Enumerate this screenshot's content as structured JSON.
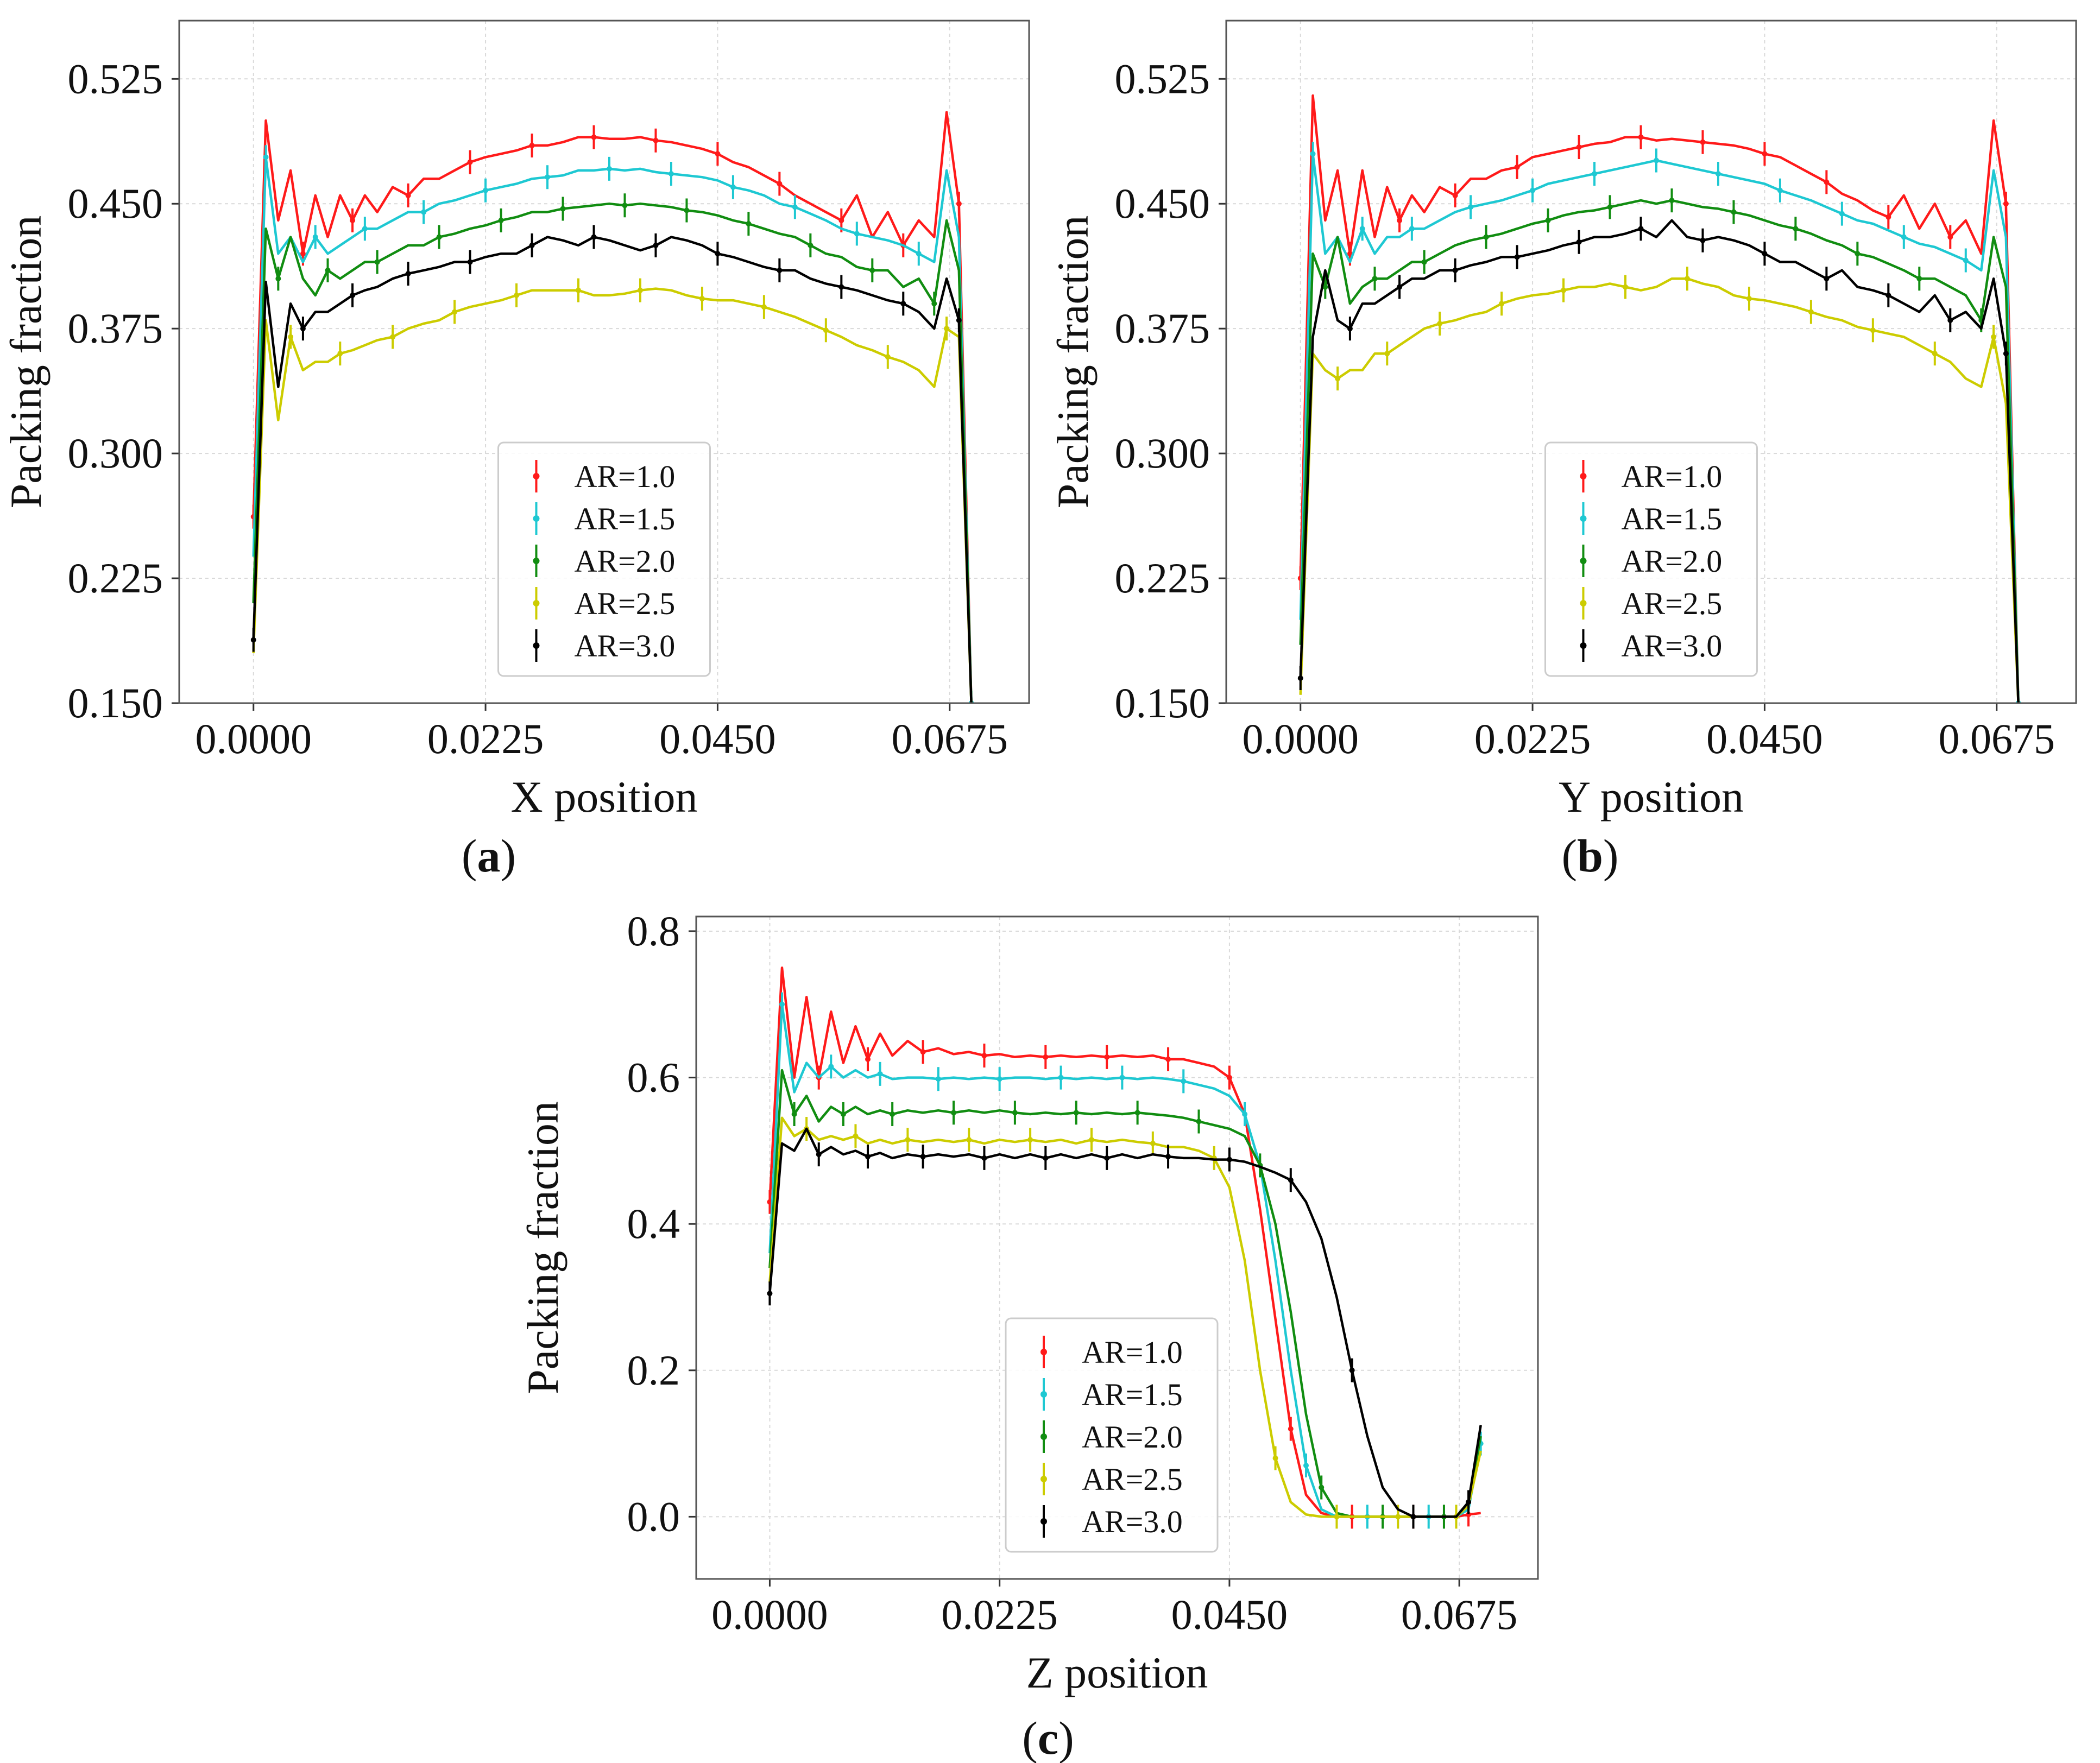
{
  "figure": {
    "legend_title": "",
    "panels": [
      "a",
      "b",
      "c"
    ]
  },
  "colors": {
    "AR=1.0": "#ff1a1a",
    "AR=1.5": "#1ec8d2",
    "AR=2.0": "#118d11",
    "AR=2.5": "#cccc00",
    "AR=3.0": "#000000",
    "grid": "#d9d9d9",
    "axes": "#555555"
  },
  "chart_data": [
    {
      "type": "line",
      "panel_label": "(a)",
      "xlabel": "X position",
      "ylabel": "Packing fraction",
      "xlim": [
        -0.0072,
        0.0752
      ],
      "ylim": [
        0.15,
        0.56
      ],
      "xticks": [
        "0.0000",
        "0.0225",
        "0.0450",
        "0.0675"
      ],
      "yticks": [
        "0.150",
        "0.225",
        "0.300",
        "0.375",
        "0.450",
        "0.525"
      ],
      "grid": true,
      "legend_position": "lower-center",
      "x": [
        0.0,
        0.0012,
        0.0024,
        0.0036,
        0.0048,
        0.006,
        0.0072,
        0.0084,
        0.0096,
        0.0108,
        0.012,
        0.0135,
        0.015,
        0.0165,
        0.018,
        0.0195,
        0.021,
        0.0225,
        0.024,
        0.0255,
        0.027,
        0.0285,
        0.03,
        0.0315,
        0.033,
        0.0345,
        0.036,
        0.0375,
        0.039,
        0.0405,
        0.042,
        0.0435,
        0.045,
        0.0465,
        0.048,
        0.0495,
        0.051,
        0.0525,
        0.054,
        0.0555,
        0.057,
        0.0585,
        0.06,
        0.0615,
        0.063,
        0.0645,
        0.066,
        0.0672,
        0.0684,
        0.0696
      ],
      "series": [
        {
          "name": "AR=1.0",
          "values": [
            0.262,
            0.5,
            0.44,
            0.47,
            0.42,
            0.455,
            0.43,
            0.455,
            0.44,
            0.455,
            0.445,
            0.46,
            0.455,
            0.465,
            0.465,
            0.47,
            0.475,
            0.478,
            0.48,
            0.482,
            0.485,
            0.485,
            0.487,
            0.49,
            0.49,
            0.489,
            0.489,
            0.49,
            0.488,
            0.487,
            0.485,
            0.483,
            0.48,
            0.475,
            0.472,
            0.467,
            0.462,
            0.455,
            0.45,
            0.445,
            0.44,
            0.455,
            0.43,
            0.445,
            0.425,
            0.44,
            0.43,
            0.505,
            0.45,
            0.15
          ]
        },
        {
          "name": "AR=1.5",
          "values": [
            0.238,
            0.478,
            0.42,
            0.43,
            0.415,
            0.43,
            0.42,
            0.425,
            0.43,
            0.435,
            0.435,
            0.44,
            0.445,
            0.445,
            0.45,
            0.452,
            0.455,
            0.458,
            0.46,
            0.462,
            0.465,
            0.466,
            0.467,
            0.47,
            0.47,
            0.471,
            0.47,
            0.471,
            0.469,
            0.468,
            0.467,
            0.466,
            0.464,
            0.46,
            0.458,
            0.455,
            0.45,
            0.448,
            0.444,
            0.44,
            0.435,
            0.432,
            0.43,
            0.428,
            0.425,
            0.42,
            0.415,
            0.47,
            0.43,
            0.15
          ]
        },
        {
          "name": "AR=2.0",
          "values": [
            0.21,
            0.435,
            0.405,
            0.43,
            0.405,
            0.395,
            0.41,
            0.405,
            0.41,
            0.415,
            0.415,
            0.42,
            0.425,
            0.425,
            0.43,
            0.432,
            0.435,
            0.437,
            0.44,
            0.442,
            0.445,
            0.445,
            0.447,
            0.448,
            0.449,
            0.45,
            0.449,
            0.45,
            0.449,
            0.448,
            0.446,
            0.445,
            0.443,
            0.44,
            0.438,
            0.435,
            0.432,
            0.43,
            0.425,
            0.42,
            0.418,
            0.412,
            0.41,
            0.41,
            0.4,
            0.405,
            0.39,
            0.44,
            0.41,
            0.15
          ]
        },
        {
          "name": "AR=2.5",
          "values": [
            0.18,
            0.38,
            0.32,
            0.37,
            0.35,
            0.355,
            0.355,
            0.36,
            0.362,
            0.365,
            0.368,
            0.37,
            0.375,
            0.378,
            0.38,
            0.385,
            0.388,
            0.39,
            0.392,
            0.395,
            0.398,
            0.398,
            0.398,
            0.398,
            0.395,
            0.395,
            0.396,
            0.398,
            0.399,
            0.398,
            0.395,
            0.393,
            0.392,
            0.392,
            0.39,
            0.388,
            0.385,
            0.382,
            0.378,
            0.374,
            0.37,
            0.365,
            0.362,
            0.358,
            0.355,
            0.35,
            0.34,
            0.375,
            0.37,
            0.15
          ]
        },
        {
          "name": "AR=3.0",
          "values": [
            0.188,
            0.403,
            0.34,
            0.39,
            0.375,
            0.385,
            0.385,
            0.39,
            0.395,
            0.398,
            0.4,
            0.405,
            0.408,
            0.41,
            0.412,
            0.415,
            0.415,
            0.418,
            0.42,
            0.42,
            0.425,
            0.43,
            0.428,
            0.425,
            0.43,
            0.428,
            0.425,
            0.422,
            0.425,
            0.43,
            0.428,
            0.425,
            0.42,
            0.418,
            0.415,
            0.412,
            0.41,
            0.41,
            0.405,
            0.402,
            0.4,
            0.398,
            0.395,
            0.392,
            0.39,
            0.385,
            0.375,
            0.405,
            0.38,
            0.15
          ]
        }
      ]
    },
    {
      "type": "line",
      "panel_label": "(b)",
      "xlabel": "Y position",
      "ylabel": "Packing fraction",
      "xlim": [
        -0.0072,
        0.0752
      ],
      "ylim": [
        0.15,
        0.56
      ],
      "xticks": [
        "0.0000",
        "0.0225",
        "0.0450",
        "0.0675"
      ],
      "yticks": [
        "0.150",
        "0.225",
        "0.300",
        "0.375",
        "0.450",
        "0.525"
      ],
      "grid": true,
      "legend_position": "lower-center",
      "x": [
        0.0,
        0.0012,
        0.0024,
        0.0036,
        0.0048,
        0.006,
        0.0072,
        0.0084,
        0.0096,
        0.0108,
        0.012,
        0.0135,
        0.015,
        0.0165,
        0.018,
        0.0195,
        0.021,
        0.0225,
        0.024,
        0.0255,
        0.027,
        0.0285,
        0.03,
        0.0315,
        0.033,
        0.0345,
        0.036,
        0.0375,
        0.039,
        0.0405,
        0.042,
        0.0435,
        0.045,
        0.0465,
        0.048,
        0.0495,
        0.051,
        0.0525,
        0.054,
        0.0555,
        0.057,
        0.0585,
        0.06,
        0.0615,
        0.063,
        0.0645,
        0.066,
        0.0672,
        0.0684,
        0.0696
      ],
      "series": [
        {
          "name": "AR=1.0",
          "values": [
            0.225,
            0.515,
            0.44,
            0.47,
            0.42,
            0.47,
            0.43,
            0.46,
            0.44,
            0.455,
            0.445,
            0.46,
            0.455,
            0.465,
            0.465,
            0.47,
            0.472,
            0.478,
            0.48,
            0.482,
            0.484,
            0.486,
            0.487,
            0.49,
            0.49,
            0.488,
            0.489,
            0.488,
            0.487,
            0.486,
            0.485,
            0.483,
            0.48,
            0.478,
            0.473,
            0.468,
            0.463,
            0.456,
            0.452,
            0.446,
            0.442,
            0.455,
            0.435,
            0.45,
            0.43,
            0.44,
            0.42,
            0.5,
            0.45,
            0.15
          ]
        },
        {
          "name": "AR=1.5",
          "values": [
            0.2,
            0.48,
            0.42,
            0.43,
            0.415,
            0.435,
            0.42,
            0.43,
            0.43,
            0.435,
            0.435,
            0.44,
            0.445,
            0.448,
            0.45,
            0.452,
            0.455,
            0.458,
            0.462,
            0.464,
            0.466,
            0.468,
            0.47,
            0.472,
            0.474,
            0.476,
            0.474,
            0.472,
            0.47,
            0.468,
            0.466,
            0.464,
            0.462,
            0.458,
            0.455,
            0.452,
            0.448,
            0.444,
            0.44,
            0.438,
            0.434,
            0.43,
            0.426,
            0.424,
            0.42,
            0.416,
            0.41,
            0.47,
            0.43,
            0.15
          ]
        },
        {
          "name": "AR=2.0",
          "values": [
            0.185,
            0.42,
            0.4,
            0.43,
            0.39,
            0.4,
            0.405,
            0.405,
            0.41,
            0.415,
            0.415,
            0.42,
            0.425,
            0.428,
            0.43,
            0.432,
            0.435,
            0.438,
            0.44,
            0.443,
            0.445,
            0.446,
            0.448,
            0.45,
            0.452,
            0.45,
            0.452,
            0.45,
            0.448,
            0.447,
            0.445,
            0.443,
            0.44,
            0.437,
            0.435,
            0.432,
            0.428,
            0.425,
            0.42,
            0.418,
            0.414,
            0.41,
            0.405,
            0.405,
            0.4,
            0.395,
            0.38,
            0.43,
            0.4,
            0.15
          ]
        },
        {
          "name": "AR=2.5",
          "values": [
            0.155,
            0.36,
            0.35,
            0.345,
            0.35,
            0.35,
            0.36,
            0.36,
            0.365,
            0.37,
            0.375,
            0.378,
            0.38,
            0.383,
            0.385,
            0.39,
            0.393,
            0.395,
            0.396,
            0.398,
            0.4,
            0.4,
            0.402,
            0.4,
            0.398,
            0.4,
            0.405,
            0.405,
            0.402,
            0.4,
            0.395,
            0.393,
            0.392,
            0.39,
            0.388,
            0.385,
            0.382,
            0.38,
            0.376,
            0.374,
            0.372,
            0.37,
            0.365,
            0.36,
            0.355,
            0.345,
            0.34,
            0.37,
            0.33,
            0.15
          ]
        },
        {
          "name": "AR=3.0",
          "values": [
            0.165,
            0.37,
            0.41,
            0.38,
            0.375,
            0.39,
            0.39,
            0.395,
            0.4,
            0.405,
            0.405,
            0.41,
            0.41,
            0.413,
            0.415,
            0.418,
            0.418,
            0.42,
            0.422,
            0.425,
            0.427,
            0.43,
            0.43,
            0.432,
            0.435,
            0.43,
            0.44,
            0.43,
            0.428,
            0.43,
            0.428,
            0.425,
            0.42,
            0.415,
            0.415,
            0.41,
            0.405,
            0.41,
            0.4,
            0.398,
            0.395,
            0.39,
            0.385,
            0.395,
            0.38,
            0.385,
            0.375,
            0.405,
            0.36,
            0.15
          ]
        }
      ]
    },
    {
      "type": "line",
      "panel_label": "(c)",
      "xlabel": "Z position",
      "ylabel": "Packing fraction",
      "xlim": [
        -0.0072,
        0.0752
      ],
      "ylim": [
        -0.085,
        0.82
      ],
      "xticks": [
        "0.0000",
        "0.0225",
        "0.0450",
        "0.0675"
      ],
      "yticks": [
        "0.0",
        "0.2",
        "0.4",
        "0.6",
        "0.8"
      ],
      "grid": true,
      "legend_position": "lower-center",
      "x": [
        0.0,
        0.0012,
        0.0024,
        0.0036,
        0.0048,
        0.006,
        0.0072,
        0.0084,
        0.0096,
        0.0108,
        0.012,
        0.0135,
        0.015,
        0.0165,
        0.018,
        0.0195,
        0.021,
        0.0225,
        0.024,
        0.0255,
        0.027,
        0.0285,
        0.03,
        0.0315,
        0.033,
        0.0345,
        0.036,
        0.0375,
        0.039,
        0.0405,
        0.042,
        0.0435,
        0.045,
        0.0465,
        0.048,
        0.0495,
        0.051,
        0.0525,
        0.054,
        0.0555,
        0.057,
        0.0585,
        0.06,
        0.0615,
        0.063,
        0.0645,
        0.066,
        0.0672,
        0.0684,
        0.0696
      ],
      "series": [
        {
          "name": "AR=1.0",
          "values": [
            0.43,
            0.75,
            0.6,
            0.71,
            0.6,
            0.69,
            0.62,
            0.67,
            0.625,
            0.66,
            0.63,
            0.65,
            0.635,
            0.64,
            0.632,
            0.635,
            0.63,
            0.632,
            0.628,
            0.63,
            0.628,
            0.63,
            0.628,
            0.63,
            0.628,
            0.63,
            0.628,
            0.63,
            0.625,
            0.625,
            0.62,
            0.615,
            0.6,
            0.55,
            0.42,
            0.27,
            0.12,
            0.03,
            0.005,
            0.0,
            0.0,
            0.0,
            0.0,
            0.0,
            0.0,
            0.0,
            0.0,
            0.0,
            0.003,
            0.005
          ]
        },
        {
          "name": "AR=1.5",
          "values": [
            0.36,
            0.7,
            0.58,
            0.62,
            0.6,
            0.615,
            0.6,
            0.61,
            0.6,
            0.605,
            0.598,
            0.6,
            0.6,
            0.598,
            0.6,
            0.598,
            0.6,
            0.598,
            0.6,
            0.6,
            0.598,
            0.6,
            0.598,
            0.6,
            0.598,
            0.6,
            0.598,
            0.6,
            0.598,
            0.595,
            0.59,
            0.585,
            0.575,
            0.55,
            0.48,
            0.35,
            0.2,
            0.07,
            0.01,
            0.0,
            0.0,
            0.0,
            0.0,
            0.0,
            0.0,
            0.0,
            0.0,
            0.0,
            0.01,
            0.1
          ]
        },
        {
          "name": "AR=2.0",
          "values": [
            0.34,
            0.61,
            0.55,
            0.575,
            0.54,
            0.56,
            0.55,
            0.56,
            0.55,
            0.555,
            0.55,
            0.555,
            0.552,
            0.555,
            0.552,
            0.555,
            0.552,
            0.555,
            0.552,
            0.55,
            0.552,
            0.55,
            0.552,
            0.55,
            0.552,
            0.55,
            0.552,
            0.55,
            0.548,
            0.545,
            0.54,
            0.535,
            0.53,
            0.52,
            0.48,
            0.4,
            0.28,
            0.14,
            0.04,
            0.005,
            0.0,
            0.0,
            0.0,
            0.0,
            0.0,
            0.0,
            0.0,
            0.0,
            0.02,
            0.11
          ]
        },
        {
          "name": "AR=2.5",
          "values": [
            0.32,
            0.545,
            0.52,
            0.53,
            0.515,
            0.52,
            0.515,
            0.52,
            0.51,
            0.515,
            0.51,
            0.515,
            0.512,
            0.515,
            0.512,
            0.515,
            0.51,
            0.515,
            0.512,
            0.515,
            0.512,
            0.515,
            0.51,
            0.515,
            0.512,
            0.515,
            0.512,
            0.51,
            0.505,
            0.505,
            0.5,
            0.49,
            0.45,
            0.35,
            0.2,
            0.08,
            0.02,
            0.003,
            0.0,
            0.0,
            0.0,
            0.0,
            0.0,
            0.0,
            0.0,
            0.0,
            0.0,
            0.0,
            0.015,
            0.09
          ]
        },
        {
          "name": "AR=3.0",
          "values": [
            0.305,
            0.51,
            0.5,
            0.53,
            0.495,
            0.505,
            0.495,
            0.5,
            0.492,
            0.497,
            0.49,
            0.495,
            0.492,
            0.495,
            0.492,
            0.495,
            0.49,
            0.495,
            0.49,
            0.495,
            0.49,
            0.495,
            0.49,
            0.495,
            0.49,
            0.495,
            0.49,
            0.495,
            0.492,
            0.49,
            0.49,
            0.488,
            0.488,
            0.485,
            0.478,
            0.47,
            0.46,
            0.43,
            0.38,
            0.3,
            0.2,
            0.11,
            0.04,
            0.01,
            0.0,
            0.0,
            0.0,
            0.0,
            0.02,
            0.125
          ]
        }
      ]
    }
  ]
}
